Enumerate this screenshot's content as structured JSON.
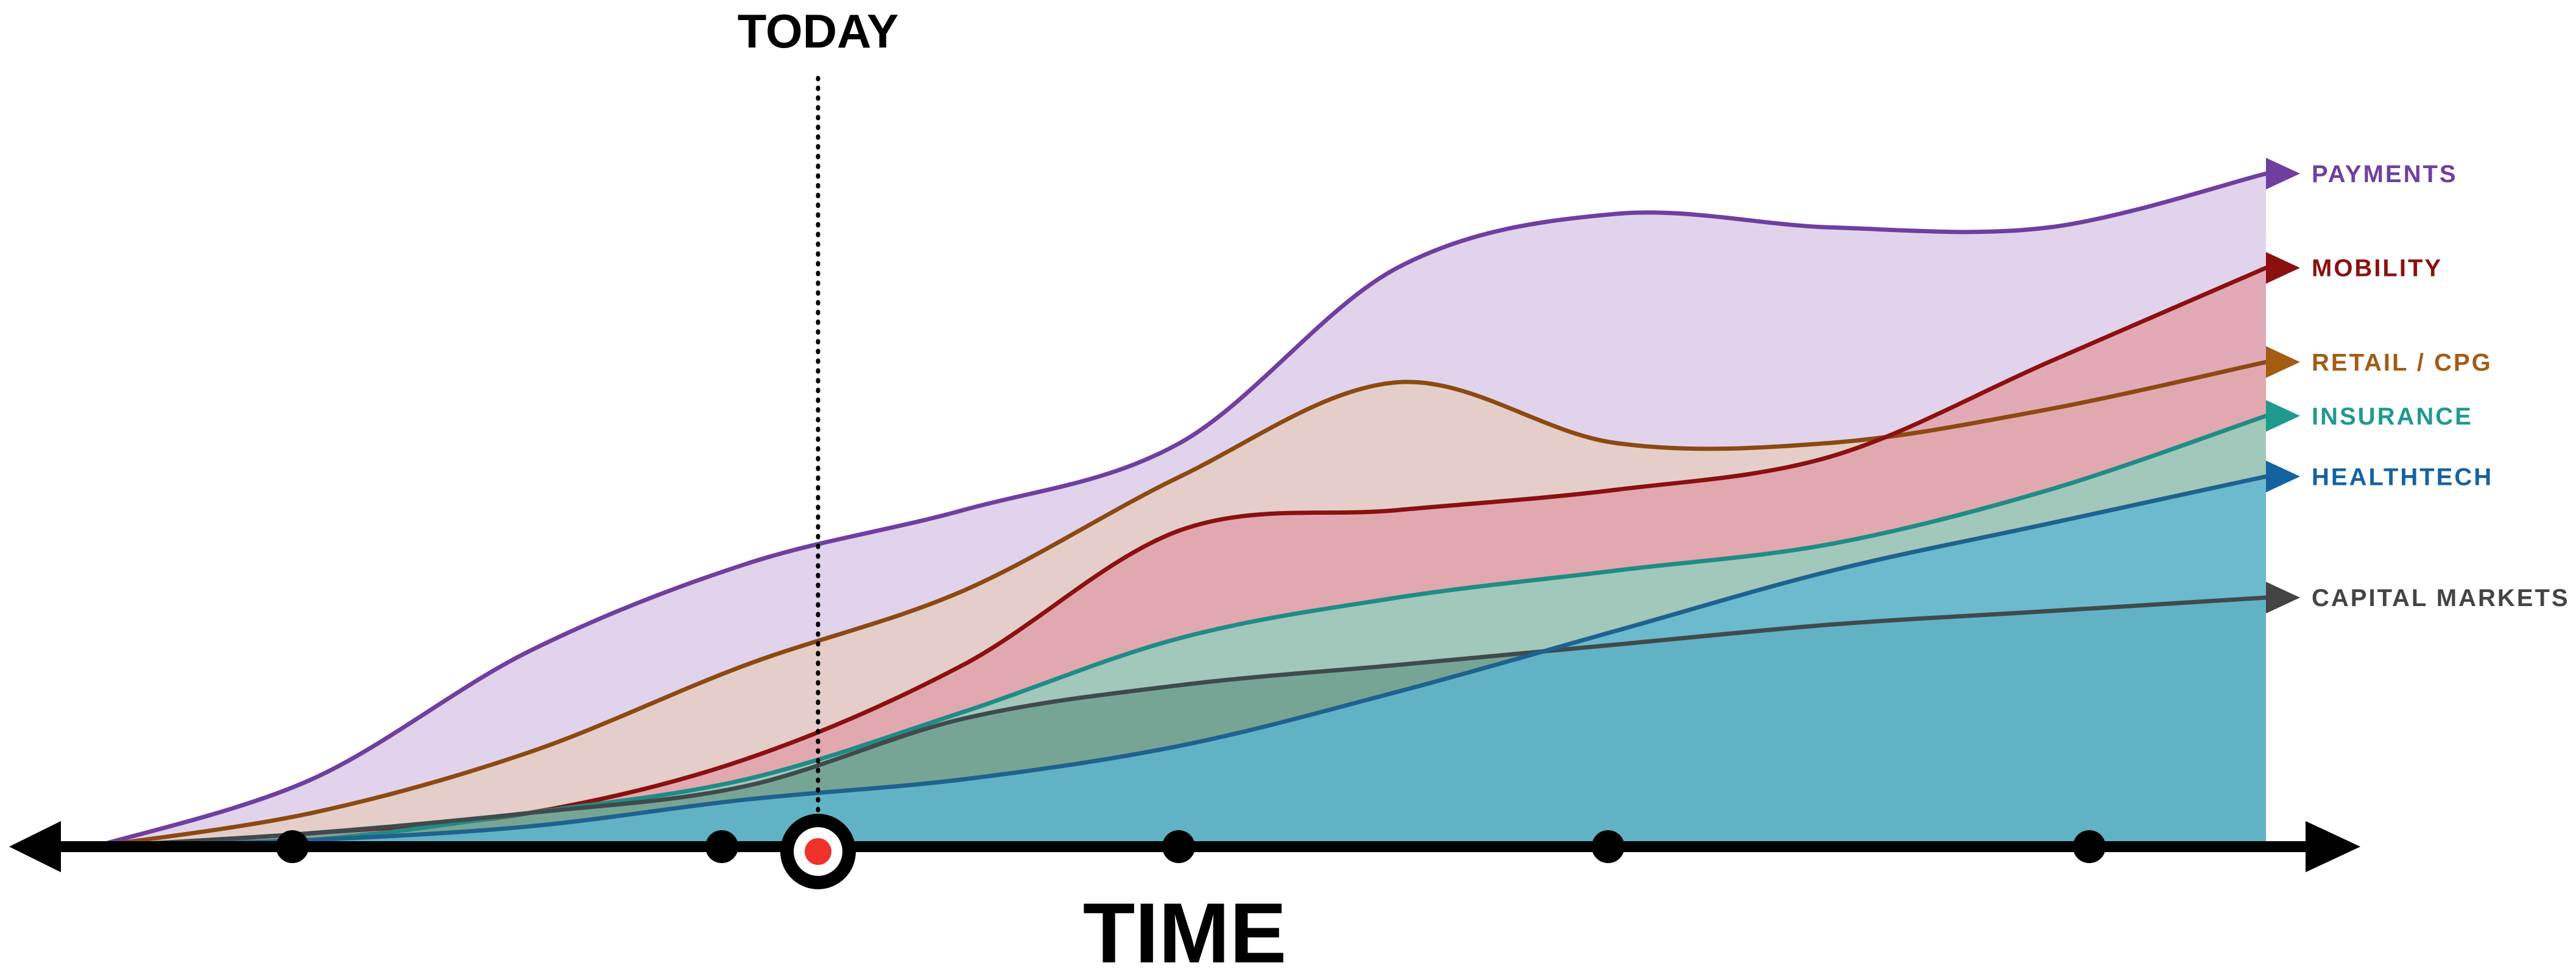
{
  "chart_data": {
    "type": "area",
    "title": "",
    "xlabel": "TIME",
    "ylabel": "",
    "grid": false,
    "legend": "right",
    "marker": {
      "label": "TODAY"
    },
    "axis": {
      "ticks": 5,
      "arrows": "both"
    },
    "series": [
      {
        "name": "PAYMENTS",
        "color": "#6f3fa0",
        "fill": "#d8c7e6",
        "values": [
          0,
          0.1,
          0.29,
          0.42,
          0.5,
          0.6,
          0.86,
          0.94,
          0.92,
          0.92,
          1.0
        ]
      },
      {
        "name": "RETAIL / CPG",
        "color": "#8c4a12",
        "fill": "#e6cdbf",
        "values": [
          0,
          0.05,
          0.14,
          0.27,
          0.38,
          0.55,
          0.69,
          0.6,
          0.6,
          0.65,
          0.72
        ]
      },
      {
        "name": "MOBILITY",
        "color": "#8b1010",
        "fill": "#e29ea8",
        "values": [
          0,
          0.02,
          0.05,
          0.13,
          0.27,
          0.47,
          0.5,
          0.53,
          0.58,
          0.72,
          0.86
        ]
      },
      {
        "name": "INSURANCE",
        "color": "#1f8c86",
        "fill": "#90d0bf",
        "values": [
          0,
          0.01,
          0.05,
          0.1,
          0.2,
          0.31,
          0.37,
          0.41,
          0.45,
          0.53,
          0.64
        ]
      },
      {
        "name": "CAPITAL MARKETS",
        "color": "#404a4d",
        "fill": "#6a9b8b",
        "values": [
          0,
          0.02,
          0.05,
          0.09,
          0.19,
          0.24,
          0.27,
          0.3,
          0.33,
          0.35,
          0.37
        ]
      },
      {
        "name": "HEALTHTECH",
        "color": "#1f628f",
        "fill": "#5bb6d2",
        "values": [
          0,
          0.01,
          0.03,
          0.07,
          0.1,
          0.15,
          0.23,
          0.32,
          0.41,
          0.48,
          0.55
        ]
      }
    ],
    "legend_order": [
      "PAYMENTS",
      "MOBILITY",
      "RETAIL / CPG",
      "INSURANCE",
      "HEALTHTECH",
      "CAPITAL MARKETS"
    ],
    "label_colors": {
      "PAYMENTS": "#6f3fa0",
      "MOBILITY": "#8b1010",
      "RETAIL / CPG": "#a35c12",
      "INSURANCE": "#1f9a8f",
      "HEALTHTECH": "#1462a0",
      "CAPITAL MARKETS": "#444444"
    },
    "overlap_fill": "#3f889b",
    "axis_color": "#000000",
    "today_dot_color": "#f0322b"
  }
}
